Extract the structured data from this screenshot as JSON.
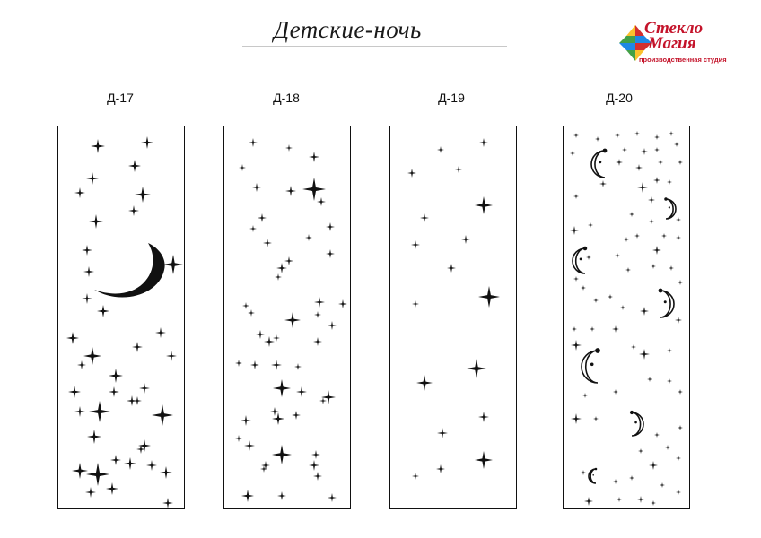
{
  "title": "Детские-ночь",
  "logo": {
    "line1": "Стекло",
    "line2": "Магия",
    "subtitle": "производственная студия",
    "colors": [
      "#d32f2f",
      "#1e88e5",
      "#43a047",
      "#fbc02d"
    ]
  },
  "designs": [
    {
      "code": "Д-17"
    },
    {
      "code": "Д-18"
    },
    {
      "code": "Д-19"
    },
    {
      "code": "Д-20"
    }
  ],
  "colors": {
    "ink": "#111111",
    "background": "#ffffff"
  }
}
